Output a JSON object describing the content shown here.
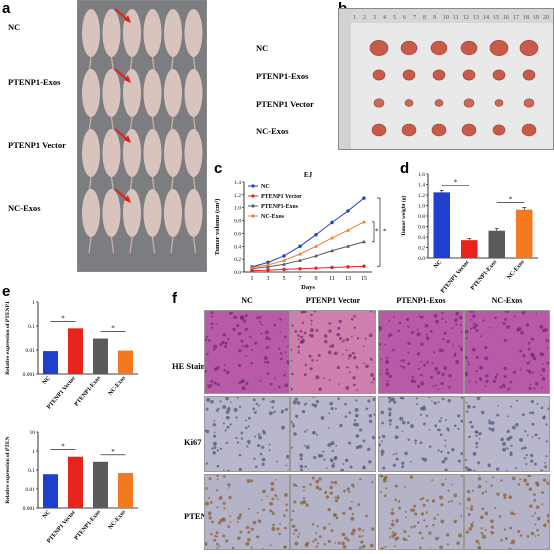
{
  "panels": {
    "a": {
      "label": "a",
      "rows": [
        "NC",
        "PTENP1-Exos",
        "PTENP1 Vector",
        "NC-Exos"
      ]
    },
    "b": {
      "label": "b",
      "rows": [
        "NC",
        "PTENP1-Exos",
        "PTENP1 Vector",
        "NC-Exos"
      ],
      "ruler_ticks": [
        "1",
        "2",
        "3",
        "4",
        "5",
        "6",
        "7",
        "8",
        "9",
        "10",
        "11",
        "12",
        "13",
        "14",
        "15",
        "16",
        "17",
        "18",
        "19",
        "20"
      ]
    },
    "c": {
      "label": "c"
    },
    "d": {
      "label": "d"
    },
    "e": {
      "label": "e"
    },
    "f": {
      "label": "f",
      "columns": [
        "NC",
        "PTENP1 Vector",
        "PTENP1-Exos",
        "NC-Exos"
      ],
      "rows": [
        "HE Staining",
        "Ki67",
        "PTEN"
      ]
    }
  },
  "colors": {
    "NC": "#1f3fcc",
    "PTENP1 Vector": "#e8231e",
    "PTENP1-Exos": "#5a5a5a",
    "NC-Exos": "#f47a1f"
  },
  "chart_data": [
    {
      "id": "c",
      "type": "line",
      "title": "EJ",
      "xlabel": "Days",
      "ylabel": "Tumor volume (cm³)",
      "x": [
        1,
        3,
        5,
        7,
        9,
        11,
        13,
        15
      ],
      "xticks": [
        "1",
        "3",
        "5",
        "7",
        "9",
        "11",
        "13",
        "15"
      ],
      "ylim": [
        0,
        1.4
      ],
      "yticks": [
        "0.0",
        "0.2",
        "0.4",
        "0.6",
        "0.8",
        "1.0",
        "1.2",
        "1.4"
      ],
      "series": [
        {
          "name": "NC",
          "values": [
            0.08,
            0.15,
            0.25,
            0.4,
            0.58,
            0.77,
            0.95,
            1.15
          ]
        },
        {
          "name": "PTENP1 Vector",
          "values": [
            0.02,
            0.03,
            0.04,
            0.05,
            0.06,
            0.07,
            0.08,
            0.09
          ]
        },
        {
          "name": "PTENP1-Exos",
          "values": [
            0.05,
            0.08,
            0.12,
            0.18,
            0.25,
            0.33,
            0.4,
            0.47
          ]
        },
        {
          "name": "NC-Exos",
          "values": [
            0.07,
            0.11,
            0.18,
            0.28,
            0.4,
            0.53,
            0.65,
            0.78
          ]
        }
      ],
      "annotations": [
        "*",
        "*"
      ],
      "legend": "top-left"
    },
    {
      "id": "d",
      "type": "bar",
      "ylabel": "Tumor weight (g)",
      "categories": [
        "NC",
        "PTENP1 Vector",
        "PTENP1-Exos",
        "NC-Exos"
      ],
      "values": [
        1.25,
        0.34,
        0.52,
        0.92
      ],
      "errors": [
        0.04,
        0.03,
        0.04,
        0.04
      ],
      "ylim": [
        0,
        1.6
      ],
      "yticks": [
        "0.0",
        "0.2",
        "0.4",
        "0.6",
        "0.8",
        "1.0",
        "1.2",
        "1.4",
        "1.6"
      ],
      "annotations": [
        "*",
        "*"
      ]
    },
    {
      "id": "e1",
      "type": "bar",
      "ylabel": "Relative expression of PTENP1",
      "yscale": "log",
      "categories": [
        "NC",
        "PTENP1 Vector",
        "PTENP1-Exos",
        "NC-Exos"
      ],
      "values": [
        0.009,
        0.08,
        0.03,
        0.0095
      ],
      "ylim": [
        0.001,
        1
      ],
      "yticks": [
        "1",
        "0.1",
        "0.01",
        "0.001"
      ],
      "annotations": [
        "*",
        "*"
      ]
    },
    {
      "id": "e2",
      "type": "bar",
      "ylabel": "Relative expression of PTEN",
      "yscale": "log",
      "categories": [
        "NC",
        "PTENP1 Vector",
        "PTENP1-Exos",
        "NC-Exos"
      ],
      "values": [
        0.06,
        0.5,
        0.27,
        0.07
      ],
      "ylim": [
        0.001,
        10
      ],
      "yticks": [
        "10",
        "1",
        "0.1",
        "0.01",
        "0.001"
      ],
      "annotations": [
        "*",
        "*"
      ]
    }
  ]
}
